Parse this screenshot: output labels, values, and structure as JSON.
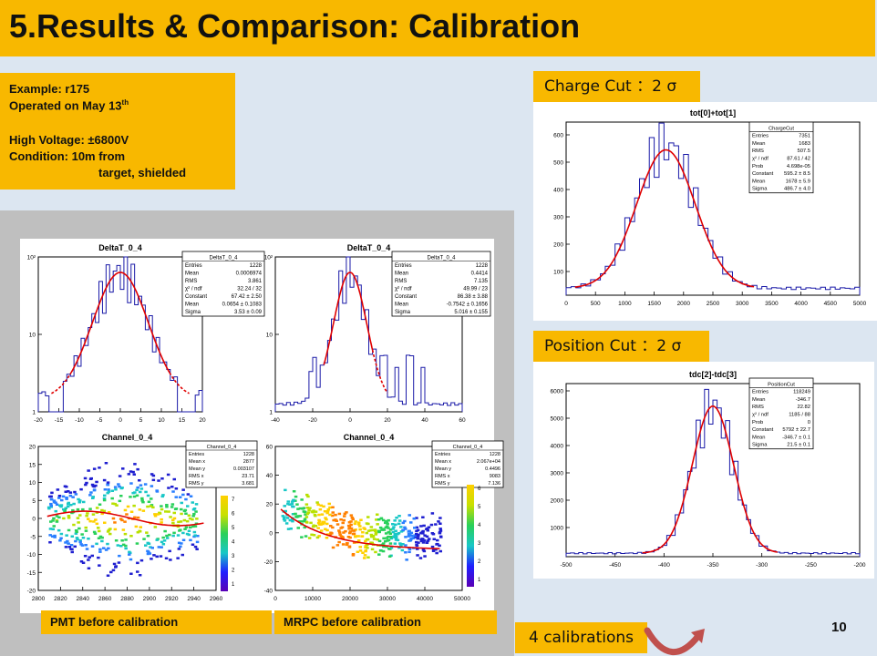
{
  "slide": {
    "title": "5.Results & Comparison: Calibration",
    "page_number": "10"
  },
  "info_box": {
    "example": "Example: r175",
    "operated_prefix": "Operated on May 13",
    "operated_sup": "th",
    "high_voltage": "High Voltage: ±6800V",
    "condition": "Condition: 10m from",
    "condition_cont": "target, shielded"
  },
  "labels": {
    "pmt": "PMT before calibration",
    "mrpc": "MRPC before calibration",
    "charge_cut": "Charge Cut ：2 σ",
    "position_cut": "Position Cut ：2 σ",
    "calibrations": "4 calibrations"
  },
  "colors": {
    "accent": "#f8b800",
    "background": "#dce6f1",
    "hist_line": "#1a1aa8",
    "fit_line": "#e00000",
    "arrow": "#c0504d"
  },
  "plots": {
    "delta_left": {
      "title": "DeltaT_0_4",
      "stats": [
        [
          "DeltaT_0_4",
          ""
        ],
        [
          "Entries",
          "1228"
        ],
        [
          "Mean",
          "0.0006974"
        ],
        [
          "RMS",
          "3.861"
        ],
        [
          "χ² / ndf",
          "32.24 / 32"
        ],
        [
          "Constant",
          "67.42 ± 2.50"
        ],
        [
          "Mean",
          "0.0654 ± 0.1083"
        ],
        [
          "Sigma",
          "3.53 ± 0.09"
        ]
      ],
      "x_ticks": [
        "-20",
        "-15",
        "-10",
        "-5",
        "0",
        "5",
        "10",
        "15",
        "20"
      ],
      "y_ticks": [
        "10²",
        "10",
        "1"
      ]
    },
    "delta_right": {
      "title": "DeltaT_0_4",
      "stats": [
        [
          "DeltaT_0_4",
          ""
        ],
        [
          "Entries",
          "1228"
        ],
        [
          "Mean",
          "0.4414"
        ],
        [
          "RMS",
          "7.135"
        ],
        [
          "χ² / ndf",
          "49.99 / 23"
        ],
        [
          "Constant",
          "86.38 ± 3.88"
        ],
        [
          "Mean",
          "-0.7542 ± 0.1656"
        ],
        [
          "Sigma",
          "5.016 ± 0.155"
        ]
      ],
      "x_ticks": [
        "-40",
        "-20",
        "0",
        "20",
        "40",
        "60"
      ],
      "y_ticks": [
        "10²",
        "10",
        "1"
      ]
    },
    "channel_left": {
      "title": "Channel_0_4",
      "stats": [
        [
          "Channel_0_4",
          ""
        ],
        [
          "Entries",
          "1228"
        ],
        [
          "Mean x",
          "2877"
        ],
        [
          "Mean y",
          "0.003107"
        ],
        [
          "RMS x",
          "23.71"
        ],
        [
          "RMS y",
          "3.681"
        ]
      ],
      "x_ticks": [
        "2800",
        "2820",
        "2840",
        "2860",
        "2880",
        "2900",
        "2920",
        "2940",
        "2960"
      ],
      "y_ticks": [
        "20",
        "15",
        "10",
        "5",
        "0",
        "-5",
        "-10",
        "-15",
        "-20"
      ],
      "z_ticks": [
        "7",
        "6",
        "5",
        "4",
        "3",
        "2",
        "1"
      ]
    },
    "channel_right": {
      "title": "Channel_0_4",
      "stats": [
        [
          "Channel_0_4",
          ""
        ],
        [
          "Entries",
          "1228"
        ],
        [
          "Mean x",
          "2.067e+04"
        ],
        [
          "Mean y",
          "0.4496"
        ],
        [
          "RMS x",
          "9083"
        ],
        [
          "RMS y",
          "7.136"
        ]
      ],
      "x_ticks": [
        "0",
        "10000",
        "20000",
        "30000",
        "40000",
        "50000"
      ],
      "y_ticks": [
        "60",
        "40",
        "20",
        "0",
        "-20",
        "-40"
      ],
      "z_ticks": [
        "6",
        "5",
        "4",
        "3",
        "2",
        "1"
      ]
    },
    "charge_cut": {
      "title": "tot[0]+tot[1]",
      "stats": [
        [
          "ChargeCut",
          ""
        ],
        [
          "Entries",
          "7351"
        ],
        [
          "Mean",
          "1683"
        ],
        [
          "RMS",
          "507.5"
        ],
        [
          "χ² / ndf",
          "87.61 / 42"
        ],
        [
          "Prob",
          "4.698e-05"
        ],
        [
          "Constant",
          "595.2 ± 8.5"
        ],
        [
          "Mean",
          "1678 ± 5.9"
        ],
        [
          "Sigma",
          "486.7 ± 4.0"
        ]
      ],
      "x_ticks": [
        "0",
        "500",
        "1000",
        "1500",
        "2000",
        "2500",
        "3000",
        "3500",
        "4000",
        "4500",
        "5000"
      ],
      "y_ticks": [
        "600",
        "500",
        "400",
        "300",
        "200",
        "100"
      ]
    },
    "position_cut": {
      "title": "tdc[2]-tdc[3]",
      "stats": [
        [
          "PositionCut",
          ""
        ],
        [
          "Entries",
          "118249"
        ],
        [
          "Mean",
          "-346.7"
        ],
        [
          "RMS",
          "22.82"
        ],
        [
          "χ² / ndf",
          "1185 / 88"
        ],
        [
          "Prob",
          "0"
        ],
        [
          "Constant",
          "5792 ± 22.7"
        ],
        [
          "Mean",
          "-346.7 ± 0.1"
        ],
        [
          "Sigma",
          "21.5 ± 0.1"
        ]
      ],
      "x_ticks": [
        "-500",
        "-450",
        "-400",
        "-350",
        "-300",
        "-250",
        "-200"
      ],
      "y_ticks": [
        "6000",
        "5000",
        "4000",
        "3000",
        "2000",
        "1000"
      ]
    }
  }
}
